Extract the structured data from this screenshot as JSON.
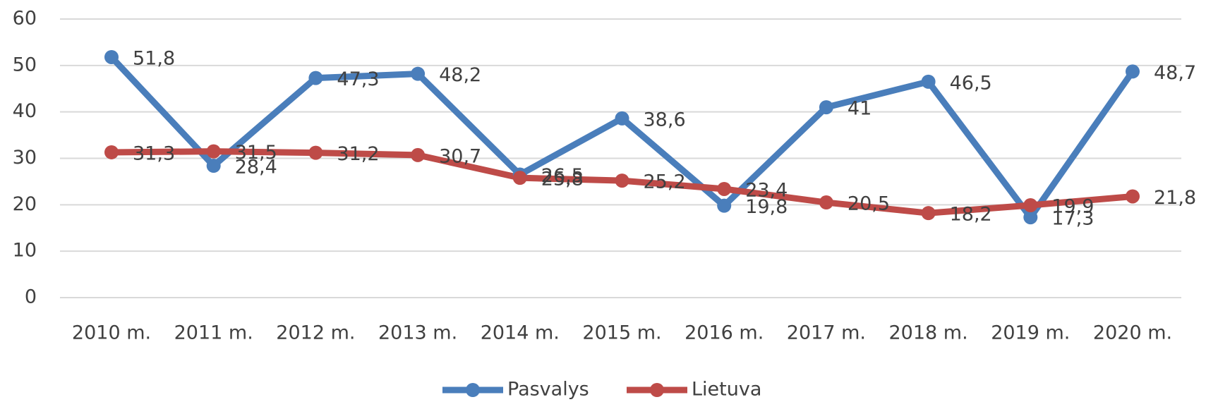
{
  "chart_data": {
    "type": "line",
    "categories": [
      "2010 m.",
      "2011 m.",
      "2012 m.",
      "2013 m.",
      "2014 m.",
      "2015 m.",
      "2016 m.",
      "2017 m.",
      "2018 m.",
      "2019 m.",
      "2020 m."
    ],
    "series": [
      {
        "name": "Pasvalys",
        "color": "#4a7ebb",
        "values": [
          51.8,
          28.4,
          47.3,
          48.2,
          26.5,
          38.6,
          19.8,
          41,
          46.5,
          17.3,
          48.7
        ],
        "value_labels": [
          "51,8",
          "28,4",
          "47,3",
          "48,2",
          "26,5",
          "38,6",
          "19,8",
          "41",
          "46,5",
          "17,3",
          "48,7"
        ]
      },
      {
        "name": "Lietuva",
        "color": "#be4b48",
        "values": [
          31.3,
          31.5,
          31.2,
          30.7,
          25.8,
          25.2,
          23.4,
          20.5,
          18.2,
          19.9,
          21.8
        ],
        "value_labels": [
          "31,3",
          "31,5",
          "31,2",
          "30,7",
          "25,8",
          "25,2",
          "23,4",
          "20,5",
          "18,2",
          "19,9",
          "21,8"
        ]
      }
    ],
    "ylim": [
      0,
      60
    ],
    "yticks": [
      0,
      10,
      20,
      30,
      40,
      50,
      60
    ],
    "grid": true,
    "legend": "bottom"
  }
}
